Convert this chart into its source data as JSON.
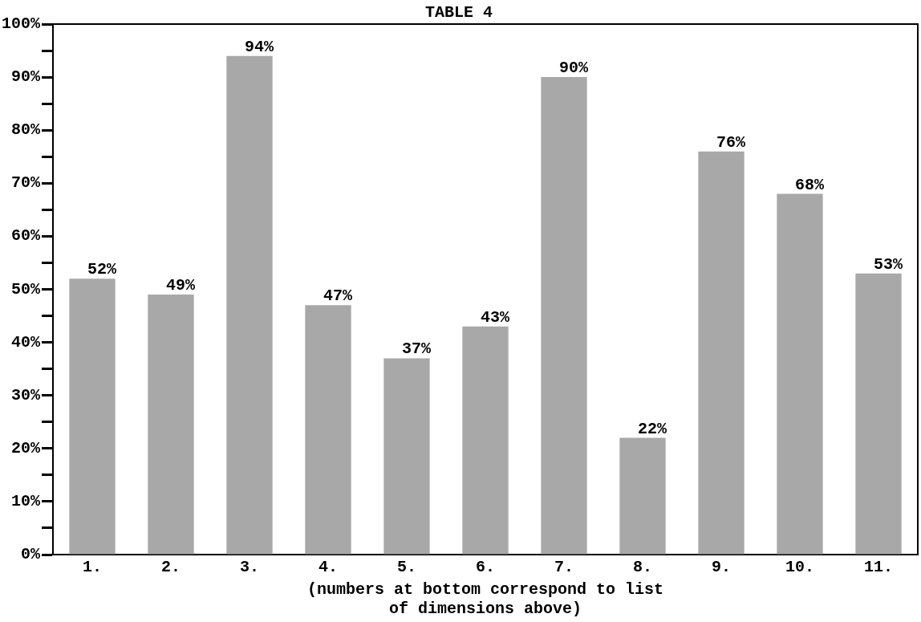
{
  "chart_data": {
    "type": "bar",
    "title": "TABLE 4",
    "categories": [
      "1.",
      "2.",
      "3.",
      "4.",
      "5.",
      "6.",
      "7.",
      "8.",
      "9.",
      "10.",
      "11."
    ],
    "values": [
      52,
      49,
      94,
      47,
      37,
      43,
      90,
      22,
      76,
      68,
      53
    ],
    "value_labels": [
      "52%",
      "49%",
      "94%",
      "47%",
      "37%",
      "43%",
      "90%",
      "22%",
      "76%",
      "68%",
      "53%"
    ],
    "color": "#a8a8a8",
    "xlabel": "(numbers at bottom correspond to list\nof dimensions above)",
    "ylim": [
      0,
      100
    ],
    "yticks": [
      {
        "value": 0,
        "label": "0%"
      },
      {
        "value": 5,
        "label": null
      },
      {
        "value": 10,
        "label": "10%"
      },
      {
        "value": 15,
        "label": null
      },
      {
        "value": 20,
        "label": "20%"
      },
      {
        "value": 25,
        "label": null
      },
      {
        "value": 30,
        "label": "30%"
      },
      {
        "value": 35,
        "label": null
      },
      {
        "value": 40,
        "label": "40%"
      },
      {
        "value": 45,
        "label": null
      },
      {
        "value": 50,
        "label": "50%"
      },
      {
        "value": 55,
        "label": null
      },
      {
        "value": 60,
        "label": "60%"
      },
      {
        "value": 65,
        "label": null
      },
      {
        "value": 70,
        "label": "70%"
      },
      {
        "value": 75,
        "label": null
      },
      {
        "value": 80,
        "label": "80%"
      },
      {
        "value": 85,
        "label": null
      },
      {
        "value": 90,
        "label": "90%"
      },
      {
        "value": 95,
        "label": null
      },
      {
        "value": 100,
        "label": "100%"
      }
    ],
    "grid": false,
    "legend": false
  }
}
